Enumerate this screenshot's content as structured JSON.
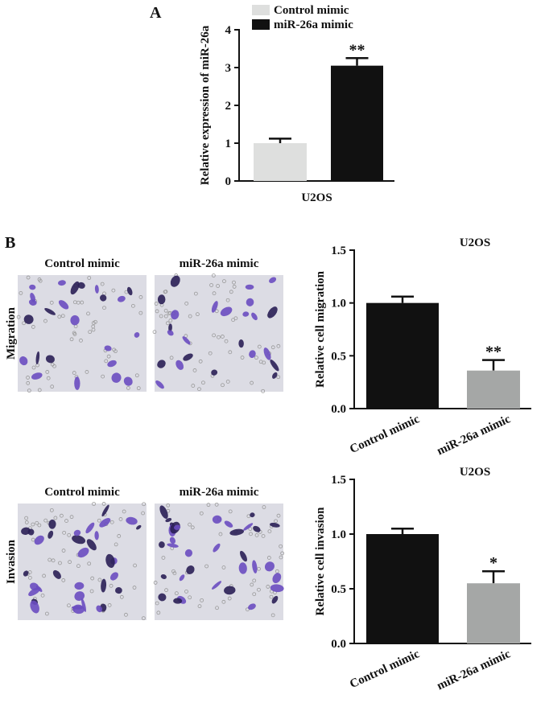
{
  "chart_data": [
    {
      "type": "bar",
      "ylabel": "Relative expression of miR-26a",
      "categories": [
        "U2OS"
      ],
      "series": [
        {
          "name": "Control mimic",
          "color": "#dedfde",
          "values": [
            1.0
          ],
          "errors": [
            0.12
          ]
        },
        {
          "name": "miR-26a mimic",
          "color": "#111111",
          "values": [
            3.05
          ],
          "errors": [
            0.2
          ]
        }
      ],
      "annotation": "**",
      "legend": "top",
      "ylim": [
        0,
        4
      ],
      "yticks": [
        0,
        1,
        2,
        3,
        4
      ]
    },
    {
      "type": "bar",
      "title": "U2OS",
      "ylabel": "Relative cell migration",
      "categories": [
        "Control mimic",
        "miR-26a mimic"
      ],
      "values": [
        1.0,
        0.36
      ],
      "errors": [
        0.06,
        0.1
      ],
      "colors": [
        "#111111",
        "#a5a7a6"
      ],
      "annotation": "**",
      "ylim": [
        0,
        1.5
      ],
      "yticks": [
        {
          "value": 0,
          "label": "0.0"
        },
        0.5,
        {
          "value": 1,
          "label": "1.0"
        },
        1.5
      ]
    },
    {
      "type": "bar",
      "title": "U2OS",
      "ylabel": "Relative cell invasion",
      "categories": [
        "Control mimic",
        "miR-26a mimic"
      ],
      "values": [
        1.0,
        0.55
      ],
      "errors": [
        0.05,
        0.11
      ],
      "colors": [
        "#111111",
        "#a5a7a6"
      ],
      "annotation": "*",
      "ylim": [
        0,
        1.5
      ],
      "yticks": [
        {
          "value": 0,
          "label": "0.0"
        },
        0.5,
        {
          "value": 1,
          "label": "1.0"
        },
        1.5
      ]
    }
  ],
  "panels": {
    "a": "A",
    "b": "B"
  },
  "image_grid": {
    "rows": [
      {
        "label": "Migration",
        "columns": [
          "Control mimic",
          "miR-26a mimic"
        ]
      },
      {
        "label": "Invasion",
        "columns": [
          "Control mimic",
          "miR-26a mimic"
        ]
      }
    ]
  }
}
